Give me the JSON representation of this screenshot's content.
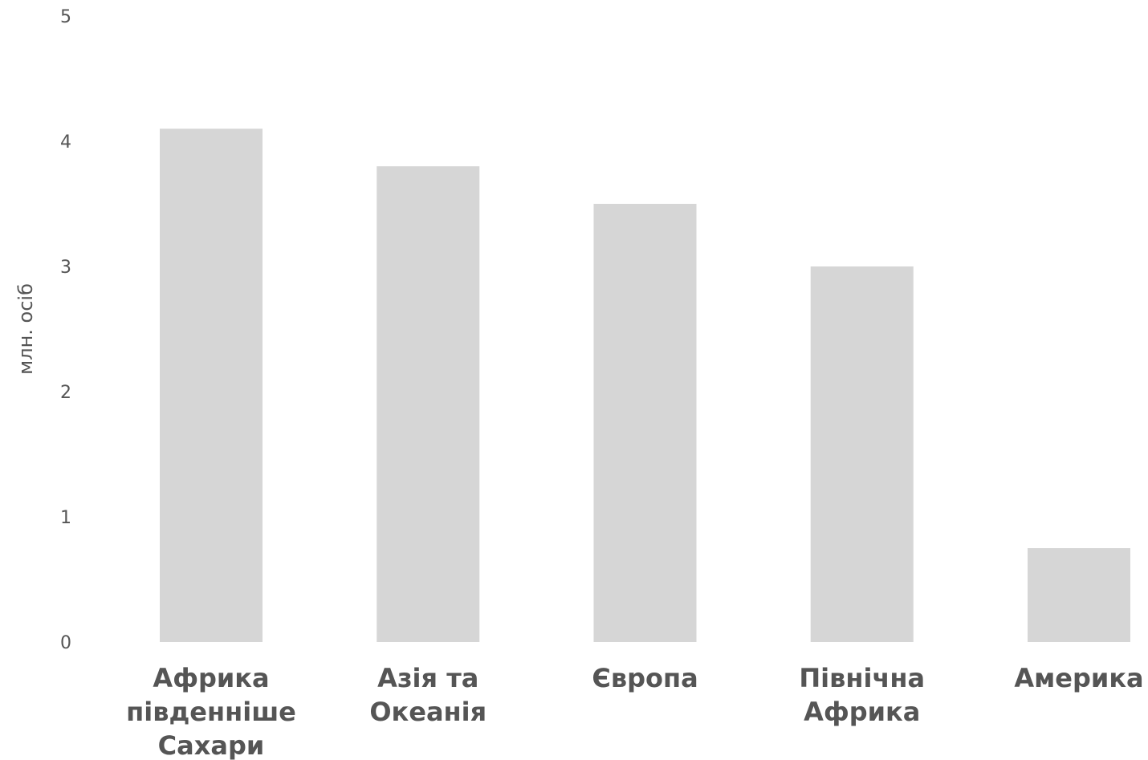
{
  "chart_data": {
    "type": "bar",
    "ylabel": "млн. осіб",
    "xlabel": "",
    "ylim": [
      0,
      5
    ],
    "yticks": [
      "0",
      "1",
      "2",
      "3",
      "4",
      "5"
    ],
    "grid": false,
    "categories": [
      [
        "Африка",
        "південніше",
        "Сахари"
      ],
      [
        "Азія та",
        "Океанія"
      ],
      [
        "Європа"
      ],
      [
        "Північна",
        "Африка"
      ],
      [
        "Америка"
      ]
    ],
    "values": [
      4.1,
      3.8,
      3.5,
      3.0,
      0.75
    ],
    "bar_color": "#d6d6d6",
    "text_color": "#555555"
  }
}
